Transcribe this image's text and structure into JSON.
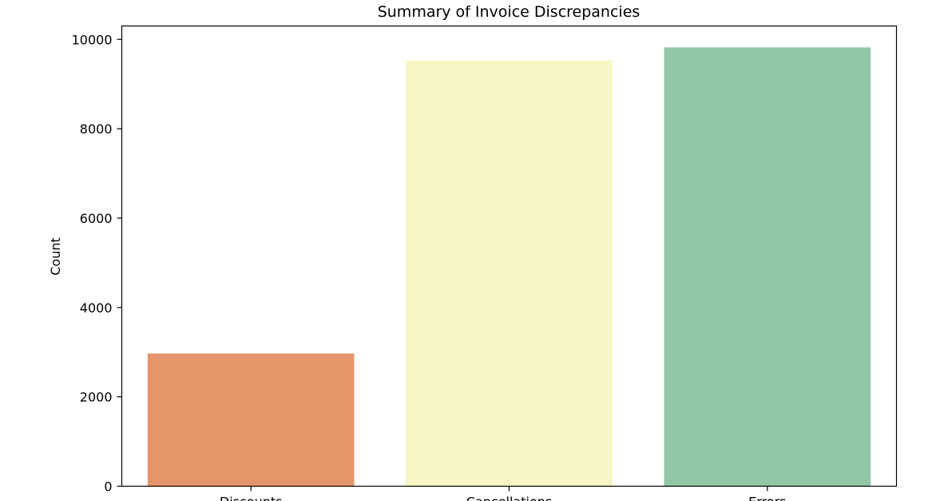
{
  "chart_data": {
    "type": "bar",
    "title": "Summary of Invoice Discrepancies",
    "xlabel": "",
    "ylabel": "Count",
    "categories": [
      "Discounts",
      "Cancellations",
      "Errors"
    ],
    "values": [
      2970,
      9530,
      9820
    ],
    "colors": [
      "#e5956a",
      "#f6f6c5",
      "#91c6a7"
    ],
    "ylim": [
      0,
      10300
    ],
    "yticks": [
      0,
      2000,
      4000,
      6000,
      8000,
      10000
    ],
    "grid": false,
    "legend": "none"
  }
}
